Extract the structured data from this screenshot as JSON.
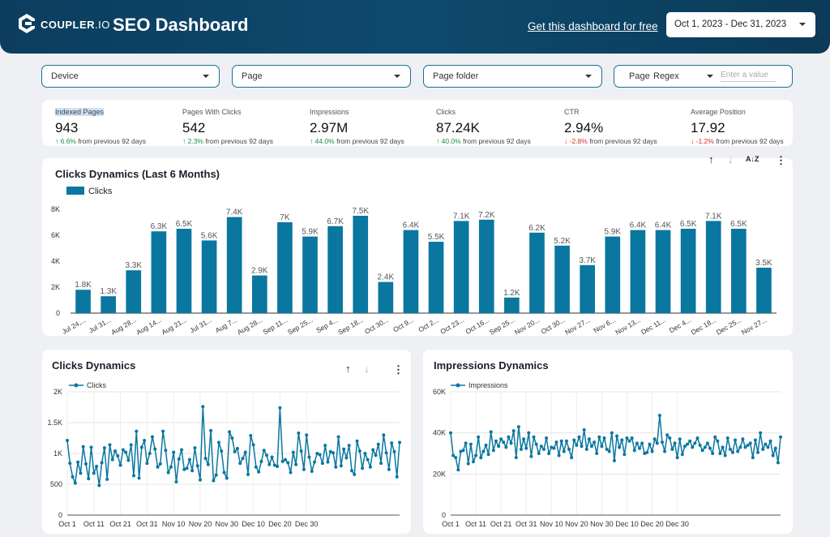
{
  "header": {
    "brand": "COUPLER",
    "brand_suffix": ".IO",
    "title": "SEO Dashboard",
    "cta": "Get this dashboard for free",
    "date_range": "Oct 1, 2023 - Dec 31, 2023"
  },
  "filters": {
    "device": "Device",
    "page": "Page",
    "page_folder": "Page folder",
    "regex_label": "Page",
    "regex_mode": "Regex",
    "regex_placeholder": "Enter a value"
  },
  "kpis": [
    {
      "label": "Indexed Pages",
      "value": "943",
      "change": "6.6%",
      "direction": "up",
      "suffix": "from previous 92 days"
    },
    {
      "label": "Pages With Clicks",
      "value": "542",
      "change": "2.3%",
      "direction": "up",
      "suffix": "from previous 92 days"
    },
    {
      "label": "Impressions",
      "value": "2.97M",
      "change": "44.0%",
      "direction": "up",
      "suffix": "from previous 92 days"
    },
    {
      "label": "Clicks",
      "value": "87.24K",
      "change": "40.0%",
      "direction": "up",
      "suffix": "from previous 92 days"
    },
    {
      "label": "CTR",
      "value": "2.94%",
      "change": "-2.8%",
      "direction": "down",
      "suffix": "from previous 92 days"
    },
    {
      "label": "Average Position",
      "value": "17.92",
      "change": "-1.2%",
      "direction": "down",
      "suffix": "from previous 92 days"
    }
  ],
  "colors": {
    "accent": "#0a77a0",
    "header": "#0c3d5e",
    "up": "#1e8e3e",
    "down": "#d93025"
  },
  "chart_data": [
    {
      "type": "bar",
      "title": "Clicks Dynamics (Last 6 Months)",
      "legend": "Clicks",
      "legend_position": "top-left",
      "ylim": [
        0,
        8000
      ],
      "yticks": [
        "0",
        "2K",
        "4K",
        "6K",
        "8K"
      ],
      "categories": [
        "Jul 24,...",
        "Jul 31...",
        "Aug 28...",
        "Aug 14...",
        "Aug 21...",
        "Jul 31...",
        "Aug 7...",
        "Aug 28...",
        "Sep 11...",
        "Sep 25...",
        "Sep 4...",
        "Sep 18...",
        "Oct 30...",
        "Oct 9...",
        "Oct 2...",
        "Oct 23...",
        "Oct 16...",
        "Sep 25...",
        "Nov 20...",
        "Oct 30...",
        "Nov 27...",
        "Nov 6...",
        "Nov 13...",
        "Dec 11...",
        "Dec 4...",
        "Dec 18...",
        "Dec 25...",
        "Nov 27..."
      ],
      "values": [
        1800,
        1300,
        3300,
        6300,
        6500,
        5600,
        7400,
        2900,
        7000,
        5900,
        6700,
        7500,
        2400,
        6400,
        5500,
        7100,
        7200,
        1200,
        6200,
        5200,
        3700,
        5900,
        6400,
        6400,
        6500,
        7100,
        6500,
        3500
      ],
      "labels": [
        "1.8K",
        "1.3K",
        "3.3K",
        "6.3K",
        "6.5K",
        "5.6K",
        "7.4K",
        "2.9K",
        "7K",
        "5.9K",
        "6.7K",
        "7.5K",
        "2.4K",
        "6.4K",
        "5.5K",
        "7.1K",
        "7.2K",
        "1.2K",
        "6.2K",
        "5.2K",
        "3.7K",
        "5.9K",
        "6.4K",
        "6.4K",
        "6.5K",
        "7.1K",
        "6.5K",
        "3.5K"
      ]
    },
    {
      "type": "line",
      "title": "Clicks Dynamics",
      "legend": "Clicks",
      "ylim": [
        0,
        2000
      ],
      "yticks": [
        "0",
        "500",
        "1K",
        "1.5K",
        "2K"
      ],
      "xticks": [
        "Oct 1",
        "Oct 11",
        "Oct 21",
        "Oct 31",
        "Nov 10",
        "Nov 20",
        "Nov 30",
        "Dec 10",
        "Dec 20",
        "Dec 30"
      ],
      "grid": true,
      "values": [
        1210,
        840,
        620,
        520,
        860,
        680,
        1110,
        830,
        590,
        1100,
        680,
        790,
        480,
        850,
        1090,
        580,
        1140,
        900,
        1040,
        960,
        810,
        1060,
        1020,
        890,
        1140,
        640,
        1360,
        600,
        1100,
        1210,
        840,
        1000,
        1270,
        1070,
        780,
        830,
        1360,
        1050,
        690,
        780,
        1020,
        540,
        910,
        1060,
        740,
        760,
        900,
        720,
        1090,
        800,
        570,
        1760,
        920,
        820,
        1370,
        560,
        650,
        1180,
        1040,
        690,
        600,
        1350,
        1250,
        1030,
        1080,
        840,
        920,
        1020,
        660,
        1290,
        1140,
        780,
        700,
        870,
        1050,
        970,
        820,
        940,
        810,
        790,
        1740,
        870,
        900,
        850,
        690,
        1020,
        820,
        1330,
        1040,
        740,
        1300,
        940,
        710,
        860,
        1000,
        980,
        840,
        1130,
        860,
        1030,
        1010,
        780,
        1270,
        800,
        1070,
        930,
        1130,
        720,
        660,
        1200,
        1040,
        760,
        1000,
        900,
        780,
        1060,
        970,
        1150,
        840,
        1300,
        1010,
        740,
        1170,
        1030,
        620,
        1180
      ]
    },
    {
      "type": "line",
      "title": "Impressions Dynamics",
      "legend": "Impressions",
      "ylim": [
        0,
        60000
      ],
      "yticks": [
        "0",
        "20K",
        "40K",
        "60K"
      ],
      "xticks": [
        "Oct 1",
        "Oct 11",
        "Oct 21",
        "Oct 31",
        "Nov 10",
        "Nov 20",
        "Nov 30",
        "Dec 10",
        "Dec 20",
        "Dec 30"
      ],
      "grid": true,
      "values": [
        40000,
        29000,
        28000,
        22000,
        31000,
        31500,
        35000,
        25000,
        34500,
        26000,
        29000,
        38000,
        28000,
        31000,
        34000,
        29500,
        40500,
        31500,
        36000,
        33500,
        37000,
        35500,
        33000,
        38000,
        35000,
        41000,
        28000,
        43000,
        32000,
        37000,
        32500,
        40000,
        28500,
        38000,
        34500,
        30000,
        33500,
        32000,
        37500,
        30000,
        33000,
        32500,
        35500,
        29000,
        36000,
        31000,
        36000,
        32000,
        28000,
        36500,
        34000,
        38000,
        33500,
        41500,
        32000,
        37000,
        33500,
        35500,
        30000,
        38000,
        33500,
        37500,
        32000,
        31000,
        40000,
        26500,
        38500,
        33000,
        36500,
        29500,
        37500,
        36000,
        37500,
        31500,
        35000,
        32500,
        35000,
        30000,
        30500,
        34500,
        31000,
        37000,
        35000,
        48500,
        35500,
        31000,
        39000,
        37500,
        32000,
        35000,
        28000,
        37000,
        29500,
        33500,
        34500,
        36000,
        33000,
        35000,
        37500,
        34000,
        31500,
        33000,
        35000,
        32500,
        30000,
        38000,
        36000,
        30000,
        33000,
        29000,
        37500,
        32000,
        30500,
        36500,
        31000,
        33000,
        37000,
        33000,
        34000,
        35000,
        28000,
        36500,
        30500,
        40000,
        32000,
        34500,
        33000,
        36000,
        29000,
        32500,
        25500,
        38000
      ]
    }
  ]
}
